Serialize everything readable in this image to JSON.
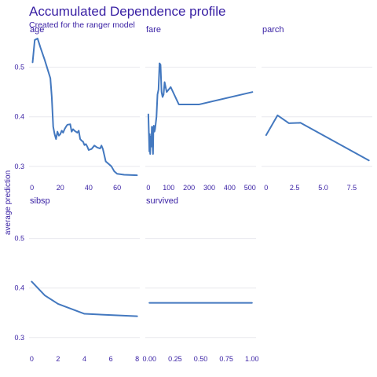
{
  "chart_data": {
    "type": "line",
    "title": "Accumulated Dependence profile",
    "subtitle": "Created for the ranger model",
    "ylabel": "average prediction",
    "line_color": "#4378bf",
    "text_color": "#371ea3",
    "grid": true,
    "shared_y_ticks": [
      0.3,
      0.4,
      0.5
    ],
    "panels": [
      {
        "name": "age",
        "xlim": [
          -2,
          76
        ],
        "ylim": [
          0.268,
          0.566
        ],
        "xticks": [
          0,
          20,
          40,
          60
        ],
        "xtick_labels": [
          "0",
          "20",
          "40",
          "60"
        ],
        "points": [
          [
            0.5,
            0.51
          ],
          [
            2,
            0.555
          ],
          [
            4,
            0.558
          ],
          [
            6,
            0.54
          ],
          [
            9,
            0.515
          ],
          [
            13,
            0.478
          ],
          [
            14,
            0.44
          ],
          [
            15,
            0.38
          ],
          [
            16,
            0.365
          ],
          [
            17,
            0.355
          ],
          [
            18,
            0.37
          ],
          [
            19,
            0.362
          ],
          [
            20,
            0.365
          ],
          [
            21,
            0.372
          ],
          [
            22,
            0.368
          ],
          [
            23,
            0.375
          ],
          [
            24,
            0.38
          ],
          [
            25,
            0.384
          ],
          [
            27,
            0.385
          ],
          [
            28,
            0.37
          ],
          [
            29,
            0.375
          ],
          [
            30,
            0.372
          ],
          [
            31,
            0.37
          ],
          [
            32,
            0.368
          ],
          [
            33,
            0.372
          ],
          [
            34,
            0.355
          ],
          [
            35,
            0.352
          ],
          [
            36,
            0.35
          ],
          [
            37,
            0.343
          ],
          [
            38,
            0.345
          ],
          [
            39,
            0.34
          ],
          [
            40,
            0.333
          ],
          [
            42,
            0.335
          ],
          [
            44,
            0.342
          ],
          [
            46,
            0.338
          ],
          [
            48,
            0.336
          ],
          [
            49,
            0.342
          ],
          [
            50,
            0.335
          ],
          [
            52,
            0.31
          ],
          [
            54,
            0.305
          ],
          [
            56,
            0.3
          ],
          [
            58,
            0.29
          ],
          [
            60,
            0.285
          ],
          [
            65,
            0.283
          ],
          [
            74,
            0.282
          ]
        ]
      },
      {
        "name": "fare",
        "xlim": [
          -15,
          530
        ],
        "ylim": [
          0.268,
          0.566
        ],
        "xticks": [
          0,
          100,
          200,
          300,
          400,
          500
        ],
        "xtick_labels": [
          "0",
          "100",
          "200",
          "300",
          "400",
          "500"
        ],
        "points": [
          [
            0,
            0.405
          ],
          [
            3,
            0.36
          ],
          [
            5,
            0.33
          ],
          [
            7,
            0.365
          ],
          [
            9,
            0.325
          ],
          [
            11,
            0.36
          ],
          [
            13,
            0.355
          ],
          [
            15,
            0.34
          ],
          [
            17,
            0.38
          ],
          [
            19,
            0.37
          ],
          [
            21,
            0.34
          ],
          [
            23,
            0.325
          ],
          [
            25,
            0.38
          ],
          [
            27,
            0.382
          ],
          [
            30,
            0.37
          ],
          [
            33,
            0.375
          ],
          [
            36,
            0.385
          ],
          [
            40,
            0.4
          ],
          [
            45,
            0.445
          ],
          [
            50,
            0.455
          ],
          [
            55,
            0.508
          ],
          [
            60,
            0.505
          ],
          [
            65,
            0.45
          ],
          [
            70,
            0.44
          ],
          [
            75,
            0.445
          ],
          [
            80,
            0.47
          ],
          [
            85,
            0.46
          ],
          [
            90,
            0.45
          ],
          [
            110,
            0.46
          ],
          [
            150,
            0.425
          ],
          [
            250,
            0.425
          ],
          [
            512,
            0.45
          ]
        ]
      },
      {
        "name": "parch",
        "xlim": [
          -0.4,
          9.3
        ],
        "ylim": [
          0.268,
          0.566
        ],
        "xticks": [
          0,
          2.5,
          5.0,
          7.5
        ],
        "xtick_labels": [
          "0",
          "2.5",
          "5.0",
          "7.5"
        ],
        "points": [
          [
            0,
            0.363
          ],
          [
            1,
            0.403
          ],
          [
            2,
            0.387
          ],
          [
            3,
            0.388
          ],
          [
            9,
            0.312
          ]
        ]
      },
      {
        "name": "sibsp",
        "xlim": [
          -0.2,
          8.2
        ],
        "ylim": [
          0.268,
          0.566
        ],
        "xticks": [
          0,
          2,
          4,
          6,
          8
        ],
        "xtick_labels": [
          "0",
          "2",
          "4",
          "6",
          "8"
        ],
        "points": [
          [
            0,
            0.413
          ],
          [
            1,
            0.385
          ],
          [
            2,
            0.368
          ],
          [
            4,
            0.348
          ],
          [
            8,
            0.343
          ]
        ]
      },
      {
        "name": "survived",
        "xlim": [
          -0.04,
          1.04
        ],
        "ylim": [
          0.268,
          0.566
        ],
        "xticks": [
          0,
          0.25,
          0.5,
          0.75,
          1.0
        ],
        "xtick_labels": [
          "0.00",
          "0.25",
          "0.50",
          "0.75",
          "1.00"
        ],
        "points": [
          [
            0,
            0.37
          ],
          [
            1,
            0.37
          ]
        ]
      }
    ]
  }
}
